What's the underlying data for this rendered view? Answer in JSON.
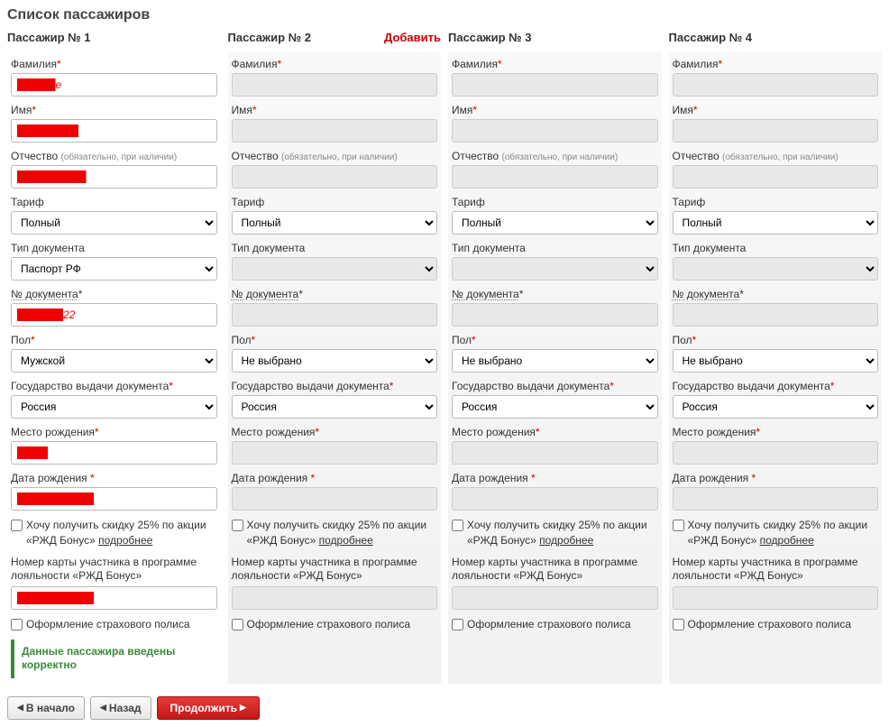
{
  "title": "Список пассажиров",
  "labels": {
    "surname": "Фамилия",
    "name": "Имя",
    "patronymic": "Отчество",
    "patronymic_hint": "(обязательно, при наличии)",
    "tariff": "Тариф",
    "doc_type": "Тип документа",
    "doc_number": "№ документа",
    "gender": "Пол",
    "issuing_state": "Государство выдачи документа",
    "birth_place": "Место рождения",
    "birth_date": "Дата рождения",
    "discount_checkbox": "Хочу получить скидку 25% по акции «РЖД Бонус»",
    "more_link": "подробнее",
    "loyalty_card": "Номер карты участника в программе лояльности «РЖД Бонус»",
    "insurance": "Оформление страхового полиса",
    "valid_msg": "Данные пассажира введены корректно"
  },
  "options": {
    "tariff": [
      "Полный"
    ],
    "doc_type_active": [
      "Паспорт РФ"
    ],
    "doc_type_disabled": [
      ""
    ],
    "gender_active": [
      "Мужской"
    ],
    "gender_disabled": [
      "Не выбрано"
    ],
    "country": [
      "Россия"
    ]
  },
  "passengers": [
    {
      "header": "Пассажир № 1",
      "active": true,
      "add_link": false,
      "surname": "█████e",
      "name": "████████",
      "patronymic": "█████████",
      "tariff": "Полный",
      "doc_type": "Паспорт РФ",
      "doc_number": "██████22",
      "gender": "Мужской",
      "issuing_state": "Россия",
      "birth_place": "████",
      "birth_date": "██████████",
      "loyalty": "██████████",
      "valid": true
    },
    {
      "header": "Пассажир № 2",
      "active": false,
      "add_link": true,
      "surname": "",
      "name": "",
      "patronymic": "",
      "tariff": "Полный",
      "doc_type": "",
      "doc_number": "",
      "gender": "Не выбрано",
      "issuing_state": "Россия",
      "birth_place": "",
      "birth_date": "",
      "loyalty": "",
      "valid": false
    },
    {
      "header": "Пассажир № 3",
      "active": false,
      "add_link": false,
      "surname": "",
      "name": "",
      "patronymic": "",
      "tariff": "Полный",
      "doc_type": "",
      "doc_number": "",
      "gender": "Не выбрано",
      "issuing_state": "Россия",
      "birth_place": "",
      "birth_date": "",
      "loyalty": "",
      "valid": false
    },
    {
      "header": "Пассажир № 4",
      "active": false,
      "add_link": false,
      "surname": "",
      "name": "",
      "patronymic": "",
      "tariff": "Полный",
      "doc_type": "",
      "doc_number": "",
      "gender": "Не выбрано",
      "issuing_state": "Россия",
      "birth_place": "",
      "birth_date": "",
      "loyalty": "",
      "valid": false
    }
  ],
  "nav": {
    "start": "В начало",
    "back": "Назад",
    "continue": "Продолжить"
  },
  "add_label": "Добавить",
  "colors": {
    "required": "#c00",
    "primary_btn": "#c31818",
    "valid": "#3a8a3a"
  }
}
